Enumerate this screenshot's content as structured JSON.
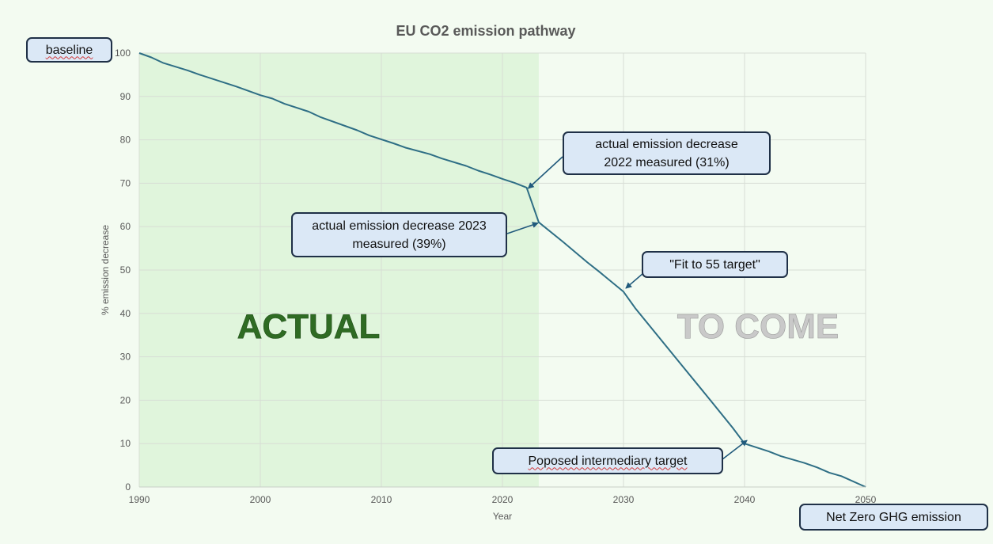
{
  "chart_data": {
    "type": "line",
    "title": "EU CO2 emission pathway",
    "xlabel": "Year",
    "ylabel": "% emission decrease",
    "xlim": [
      1990,
      2050
    ],
    "ylim": [
      0,
      100
    ],
    "xticks": [
      1990,
      2000,
      2010,
      2020,
      2030,
      2040,
      2050
    ],
    "yticks": [
      0,
      10,
      20,
      30,
      40,
      50,
      60,
      70,
      80,
      90,
      100
    ],
    "grid": true,
    "series": [
      {
        "x": [
          1990,
          1991,
          1992,
          1994,
          1995,
          1998,
          2000,
          2001,
          2002,
          2004,
          2005,
          2008,
          2009,
          2011,
          2012,
          2014,
          2015,
          2017,
          2018,
          2019,
          2020,
          2021,
          2022,
          2023,
          2025,
          2027,
          2028,
          2030,
          2031,
          2035,
          2037,
          2039,
          2040,
          2042,
          2043,
          2045,
          2046,
          2047,
          2048,
          2050
        ],
        "y": [
          100,
          99,
          97.7,
          96,
          95,
          92.3,
          90.3,
          89.5,
          88.3,
          86.5,
          85.2,
          82.2,
          81,
          79.2,
          78.2,
          76.7,
          75.7,
          74,
          72.9,
          72,
          71,
          70.1,
          69,
          61,
          56.5,
          51.8,
          49.6,
          45,
          41.1,
          27.4,
          20.6,
          13.7,
          10,
          8.2,
          7.1,
          5.5,
          4.5,
          3.3,
          2.5,
          0
        ]
      }
    ],
    "regions": [
      {
        "label": "ACTUAL",
        "from": 1990,
        "to": 2023,
        "color": "#e0f5dc",
        "text_color": "#2f6b23"
      },
      {
        "label": "TO COME",
        "from": 2023,
        "to": 2050,
        "color": "none",
        "text_color": "#c9c9c9"
      }
    ],
    "line_color": "#2e6e85",
    "annotations": [
      {
        "text": "baseline",
        "target": [
          1990,
          100
        ]
      },
      {
        "text": "actual emission decrease 2022 measured (31%)",
        "lines": [
          "actual emission decrease",
          "2022 measured (31%)"
        ],
        "target": [
          2022,
          69
        ]
      },
      {
        "text": "actual emission decrease 2023 measured (39%)",
        "lines": [
          "actual emission decrease 2023",
          "measured (39%)"
        ],
        "target": [
          2023,
          61
        ]
      },
      {
        "text": "\"Fit to 55 target\"",
        "target": [
          2030,
          46
        ]
      },
      {
        "text": "Poposed intermediary target",
        "target": [
          2040,
          10
        ]
      },
      {
        "text": "Net Zero GHG emission",
        "target": [
          2050,
          0
        ]
      }
    ]
  }
}
